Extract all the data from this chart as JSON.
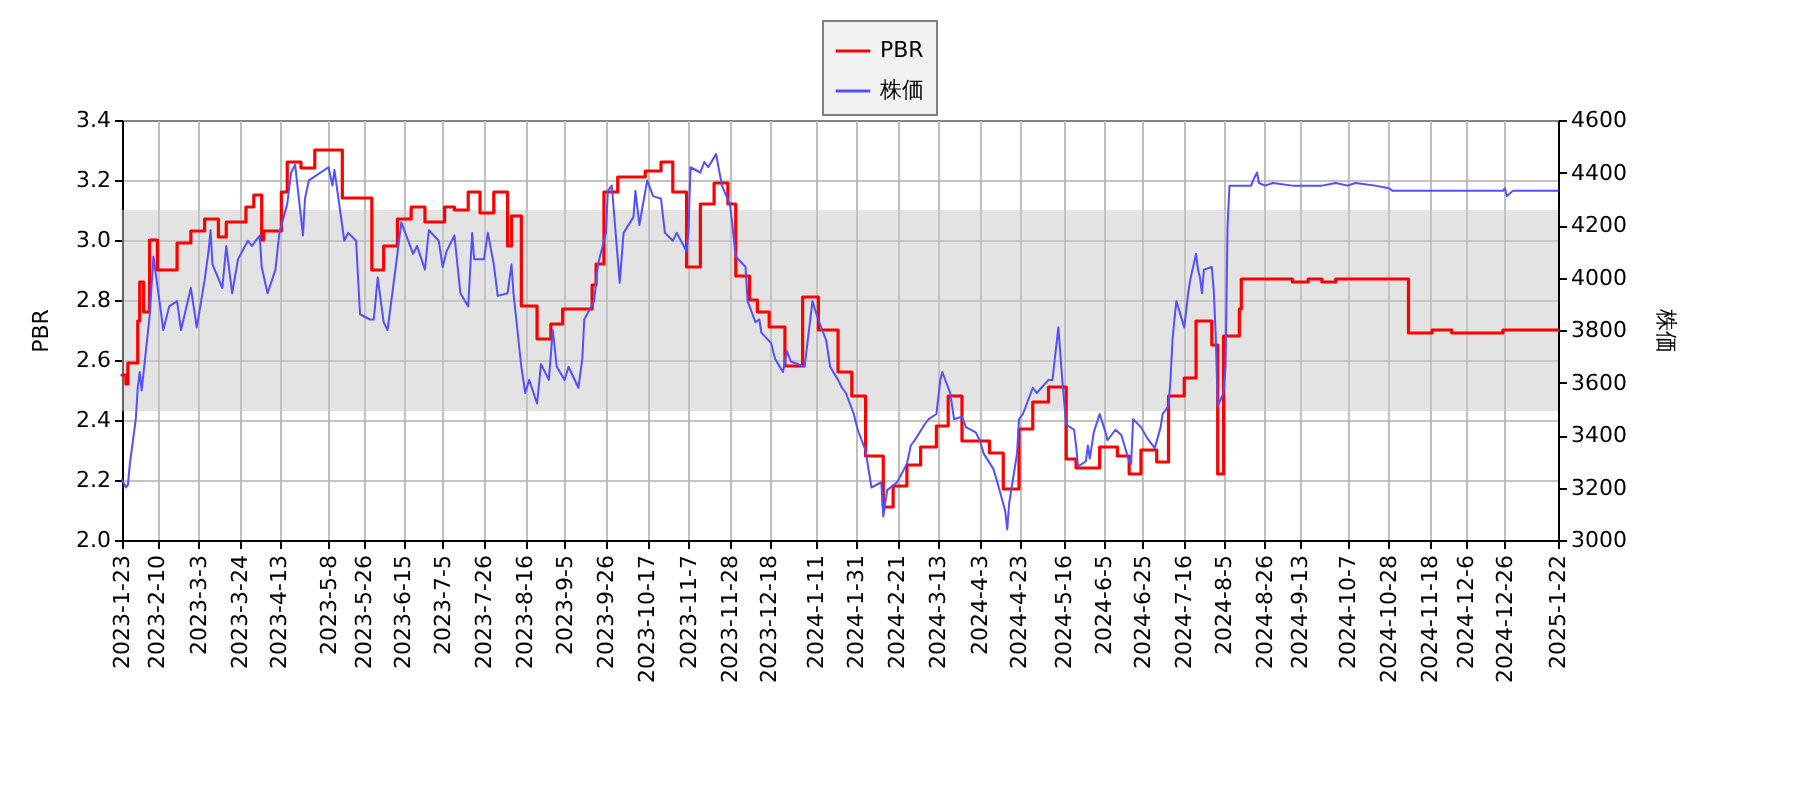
{
  "chart_data": {
    "type": "line",
    "ylabel": "PBR",
    "y2label": "株価",
    "xlim": [
      "2023-01-23",
      "2025-01-22"
    ],
    "xticks": [
      {
        "value": "2023-01-23",
        "label": "2023-1-23"
      },
      {
        "value": "2023-02-10",
        "label": "2023-2-10"
      },
      {
        "value": "2023-03-03",
        "label": "2023-3-3"
      },
      {
        "value": "2023-03-24",
        "label": "2023-3-24"
      },
      {
        "value": "2023-04-13",
        "label": "2023-4-13"
      },
      {
        "value": "2023-05-08",
        "label": "2023-5-8"
      },
      {
        "value": "2023-05-26",
        "label": "2023-5-26"
      },
      {
        "value": "2023-06-15",
        "label": "2023-6-15"
      },
      {
        "value": "2023-07-05",
        "label": "2023-7-5"
      },
      {
        "value": "2023-07-26",
        "label": "2023-7-26"
      },
      {
        "value": "2023-08-16",
        "label": "2023-8-16"
      },
      {
        "value": "2023-09-05",
        "label": "2023-9-5"
      },
      {
        "value": "2023-09-26",
        "label": "2023-9-26"
      },
      {
        "value": "2023-10-17",
        "label": "2023-10-17"
      },
      {
        "value": "2023-11-07",
        "label": "2023-11-7"
      },
      {
        "value": "2023-11-28",
        "label": "2023-11-28"
      },
      {
        "value": "2023-12-18",
        "label": "2023-12-18"
      },
      {
        "value": "2024-01-11",
        "label": "2024-1-11"
      },
      {
        "value": "2024-01-31",
        "label": "2024-1-31"
      },
      {
        "value": "2024-02-21",
        "label": "2024-2-21"
      },
      {
        "value": "2024-03-13",
        "label": "2024-3-13"
      },
      {
        "value": "2024-04-03",
        "label": "2024-4-3"
      },
      {
        "value": "2024-04-23",
        "label": "2024-4-23"
      },
      {
        "value": "2024-05-16",
        "label": "2024-5-16"
      },
      {
        "value": "2024-06-05",
        "label": "2024-6-5"
      },
      {
        "value": "2024-06-25",
        "label": "2024-6-25"
      },
      {
        "value": "2024-07-16",
        "label": "2024-7-16"
      },
      {
        "value": "2024-08-05",
        "label": "2024-8-5"
      },
      {
        "value": "2024-08-26",
        "label": "2024-8-26"
      },
      {
        "value": "2024-09-13",
        "label": "2024-9-13"
      },
      {
        "value": "2024-10-07",
        "label": "2024-10-7"
      },
      {
        "value": "2024-10-28",
        "label": "2024-10-28"
      },
      {
        "value": "2024-11-18",
        "label": "2024-11-18"
      },
      {
        "value": "2024-12-06",
        "label": "2024-12-6"
      },
      {
        "value": "2024-12-26",
        "label": "2024-12-26"
      },
      {
        "value": "2025-01-22",
        "label": "2025-1-22"
      }
    ],
    "ylim": [
      2.0,
      3.4
    ],
    "yticks": [
      {
        "value": 2,
        "label": "2.0"
      },
      2.2,
      2.4,
      2.6,
      2.8,
      {
        "value": 3,
        "label": "3.0"
      },
      3.2,
      3.4
    ],
    "y2lim": [
      3000,
      4600
    ],
    "y2ticks": [
      3000,
      3200,
      3400,
      3600,
      3800,
      4000,
      4200,
      4400,
      4600
    ],
    "grid": true,
    "legend": "top",
    "bands": [
      {
        "axis": "y",
        "from": 2.43,
        "to": 3.1,
        "color": "#c8c8c8"
      }
    ],
    "series": [
      {
        "name": "PBR",
        "type": "step",
        "color": "#ff0000",
        "x": [
          "2023-01-23",
          "2023-01-25",
          "2023-01-26",
          "2023-01-31",
          "2023-02-01",
          "2023-02-03",
          "2023-02-06",
          "2023-02-10",
          "2023-02-20",
          "2023-02-27",
          "2023-03-06",
          "2023-03-13",
          "2023-03-17",
          "2023-03-27",
          "2023-03-31",
          "2023-04-04",
          "2023-04-05",
          "2023-04-14",
          "2023-04-17",
          "2023-04-24",
          "2023-05-01",
          "2023-05-15",
          "2023-05-30",
          "2023-06-05",
          "2023-06-12",
          "2023-06-19",
          "2023-06-26",
          "2023-07-06",
          "2023-07-11",
          "2023-07-18",
          "2023-07-24",
          "2023-07-31",
          "2023-08-07",
          "2023-08-09",
          "2023-08-14",
          "2023-08-22",
          "2023-08-29",
          "2023-09-04",
          "2023-09-19",
          "2023-09-21",
          "2023-09-25",
          "2023-10-02",
          "2023-10-16",
          "2023-10-24",
          "2023-10-30",
          "2023-11-06",
          "2023-11-13",
          "2023-11-20",
          "2023-11-27",
          "2023-12-01",
          "2023-12-08",
          "2023-12-12",
          "2023-12-18",
          "2023-12-26",
          "2024-01-04",
          "2024-01-12",
          "2024-01-22",
          "2024-01-29",
          "2024-02-05",
          "2024-02-14",
          "2024-02-19",
          "2024-02-26",
          "2024-03-04",
          "2024-03-12",
          "2024-03-18",
          "2024-03-25",
          "2024-04-08",
          "2024-04-15",
          "2024-04-23",
          "2024-04-30",
          "2024-05-08",
          "2024-05-17",
          "2024-05-22",
          "2024-06-03",
          "2024-06-12",
          "2024-06-18",
          "2024-06-24",
          "2024-07-02",
          "2024-07-08",
          "2024-07-16",
          "2024-07-22",
          "2024-07-30",
          "2024-08-02",
          "2024-08-05",
          "2024-08-13",
          "2024-08-14",
          "2024-09-09",
          "2024-09-17",
          "2024-09-24",
          "2024-10-01",
          "2024-11-07",
          "2024-11-19",
          "2024-11-29",
          "2024-12-25",
          "2025-01-22"
        ],
        "values": [
          2.55,
          2.52,
          2.59,
          2.73,
          2.86,
          2.76,
          3.0,
          2.9,
          2.99,
          3.03,
          3.07,
          3.01,
          3.06,
          3.11,
          3.15,
          3.0,
          3.03,
          3.16,
          3.26,
          3.24,
          3.3,
          3.14,
          2.9,
          2.98,
          3.07,
          3.11,
          3.06,
          3.11,
          3.1,
          3.16,
          3.09,
          3.16,
          2.98,
          3.08,
          2.78,
          2.67,
          2.72,
          2.77,
          2.85,
          2.92,
          3.16,
          3.21,
          3.23,
          3.26,
          3.16,
          2.91,
          3.12,
          3.19,
          3.12,
          2.88,
          2.8,
          2.76,
          2.71,
          2.58,
          2.81,
          2.7,
          2.56,
          2.48,
          2.28,
          2.11,
          2.18,
          2.25,
          2.31,
          2.38,
          2.48,
          2.33,
          2.29,
          2.17,
          2.37,
          2.46,
          2.51,
          2.27,
          2.24,
          2.31,
          2.28,
          2.22,
          2.3,
          2.26,
          2.48,
          2.54,
          2.73,
          2.65,
          2.22,
          2.68,
          2.77,
          2.87,
          2.86,
          2.87,
          2.86,
          2.87,
          2.69,
          2.7,
          2.69,
          2.7,
          2.7
        ]
      },
      {
        "name": "株価",
        "color": "#5050ff",
        "axis": "y2",
        "x": [
          "2023-01-23",
          "2023-01-25",
          "2023-01-26",
          "2023-01-27",
          "2023-01-30",
          "2023-01-31",
          "2023-02-01",
          "2023-02-02",
          "2023-02-06",
          "2023-02-08",
          "2023-02-13",
          "2023-02-16",
          "2023-02-20",
          "2023-02-22",
          "2023-02-27",
          "2023-03-02",
          "2023-03-06",
          "2023-03-08",
          "2023-03-09",
          "2023-03-10",
          "2023-03-15",
          "2023-03-17",
          "2023-03-20",
          "2023-03-23",
          "2023-03-28",
          "2023-03-30",
          "2023-04-03",
          "2023-04-04",
          "2023-04-07",
          "2023-04-11",
          "2023-04-13",
          "2023-04-17",
          "2023-04-19",
          "2023-04-21",
          "2023-04-25",
          "2023-04-26",
          "2023-04-28",
          "2023-05-08",
          "2023-05-10",
          "2023-05-11",
          "2023-05-16",
          "2023-05-18",
          "2023-05-22",
          "2023-05-24",
          "2023-05-29",
          "2023-05-31",
          "2023-06-02",
          "2023-06-05",
          "2023-06-07",
          "2023-06-12",
          "2023-06-14",
          "2023-06-20",
          "2023-06-22",
          "2023-06-26",
          "2023-06-28",
          "2023-07-03",
          "2023-07-05",
          "2023-07-07",
          "2023-07-11",
          "2023-07-14",
          "2023-07-18",
          "2023-07-20",
          "2023-07-21",
          "2023-07-26",
          "2023-07-28",
          "2023-07-31",
          "2023-08-02",
          "2023-08-07",
          "2023-08-09",
          "2023-08-10",
          "2023-08-14",
          "2023-08-16",
          "2023-08-18",
          "2023-08-22",
          "2023-08-24",
          "2023-08-28",
          "2023-08-30",
          "2023-09-01",
          "2023-09-05",
          "2023-09-07",
          "2023-09-12",
          "2023-09-14",
          "2023-09-15",
          "2023-09-20",
          "2023-09-22",
          "2023-09-26",
          "2023-09-27",
          "2023-09-29",
          "2023-10-03",
          "2023-10-05",
          "2023-10-10",
          "2023-10-11",
          "2023-10-13",
          "2023-10-17",
          "2023-10-20",
          "2023-10-24",
          "2023-10-26",
          "2023-10-30",
          "2023-11-01",
          "2023-11-06",
          "2023-11-07",
          "2023-11-08",
          "2023-11-13",
          "2023-11-15",
          "2023-11-17",
          "2023-11-21",
          "2023-11-24",
          "2023-11-28",
          "2023-11-29",
          "2023-12-01",
          "2023-12-06",
          "2023-12-07",
          "2023-12-11",
          "2023-12-13",
          "2023-12-14",
          "2023-12-19",
          "2023-12-21",
          "2023-12-25",
          "2023-12-27",
          "2023-12-29",
          "2024-01-05",
          "2024-01-09",
          "2024-01-11",
          "2024-01-16",
          "2024-01-18",
          "2024-01-22",
          "2024-01-24",
          "2024-01-26",
          "2024-01-30",
          "2024-02-01",
          "2024-02-05",
          "2024-02-08",
          "2024-02-13",
          "2024-02-14",
          "2024-02-16",
          "2024-02-21",
          "2024-02-26",
          "2024-02-28",
          "2024-03-01",
          "2024-03-06",
          "2024-03-08",
          "2024-03-12",
          "2024-03-14",
          "2024-03-15",
          "2024-03-19",
          "2024-03-21",
          "2024-03-25",
          "2024-03-27",
          "2024-04-01",
          "2024-04-03",
          "2024-04-05",
          "2024-04-10",
          "2024-04-12",
          "2024-04-16",
          "2024-04-17",
          "2024-04-18",
          "2024-04-22",
          "2024-04-23",
          "2024-04-25",
          "2024-04-30",
          "2024-05-02",
          "2024-05-08",
          "2024-05-10",
          "2024-05-13",
          "2024-05-14",
          "2024-05-15",
          "2024-05-17",
          "2024-05-21",
          "2024-05-22",
          "2024-05-23",
          "2024-05-27",
          "2024-05-28",
          "2024-05-29",
          "2024-05-31",
          "2024-06-03",
          "2024-06-06",
          "2024-06-07",
          "2024-06-11",
          "2024-06-14",
          "2024-06-18",
          "2024-06-19",
          "2024-06-20",
          "2024-06-24",
          "2024-06-27",
          "2024-07-01",
          "2024-07-04",
          "2024-07-05",
          "2024-07-08",
          "2024-07-09",
          "2024-07-10",
          "2024-07-11",
          "2024-07-12",
          "2024-07-16",
          "2024-07-18",
          "2024-07-19",
          "2024-07-22",
          "2024-07-23",
          "2024-07-24",
          "2024-07-25",
          "2024-07-26",
          "2024-07-30",
          "2024-07-31",
          "2024-08-01",
          "2024-08-02",
          "2024-08-05",
          "2024-08-06",
          "2024-08-07",
          "2024-08-08",
          "2024-08-13",
          "2024-08-19",
          "2024-08-20",
          "2024-08-22",
          "2024-08-23",
          "2024-08-26",
          "2024-08-30",
          "2024-09-09",
          "2024-09-17",
          "2024-09-24",
          "2024-10-01",
          "2024-10-07",
          "2024-10-11",
          "2024-10-21",
          "2024-10-28",
          "2024-10-30",
          "2024-11-18",
          "2024-11-29",
          "2024-12-25",
          "2024-12-26",
          "2024-12-27",
          "2024-12-30",
          "2025-01-22"
        ],
        "values": [
          3230,
          3200,
          3210,
          3290,
          3460,
          3580,
          3640,
          3570,
          3850,
          4080,
          3800,
          3890,
          3910,
          3800,
          3960,
          3810,
          3990,
          4100,
          4180,
          4050,
          3960,
          4120,
          3940,
          4070,
          4140,
          4120,
          4160,
          4040,
          3940,
          4030,
          4170,
          4280,
          4400,
          4430,
          4160,
          4300,
          4370,
          4420,
          4350,
          4410,
          4140,
          4170,
          4140,
          3860,
          3840,
          3840,
          4000,
          3830,
          3800,
          4090,
          4210,
          4090,
          4120,
          4030,
          4180,
          4140,
          4040,
          4100,
          4160,
          3940,
          3890,
          4170,
          4070,
          4070,
          4170,
          4050,
          3930,
          3940,
          4050,
          3940,
          3660,
          3560,
          3610,
          3520,
          3670,
          3610,
          3800,
          3660,
          3610,
          3660,
          3580,
          3690,
          3840,
          3910,
          4050,
          4170,
          4330,
          4350,
          3980,
          4170,
          4230,
          4330,
          4200,
          4370,
          4310,
          4300,
          4170,
          4140,
          4170,
          4100,
          4180,
          4420,
          4400,
          4440,
          4420,
          4470,
          4350,
          4280,
          4220,
          4080,
          4040,
          3910,
          3830,
          3840,
          3790,
          3750,
          3690,
          3640,
          3720,
          3680,
          3660,
          3910,
          3860,
          3760,
          3660,
          3610,
          3580,
          3560,
          3480,
          3420,
          3340,
          3200,
          3220,
          3090,
          3190,
          3220,
          3290,
          3360,
          3380,
          3440,
          3460,
          3480,
          3610,
          3640,
          3560,
          3460,
          3470,
          3430,
          3410,
          3380,
          3330,
          3270,
          3220,
          3110,
          3040,
          3140,
          3330,
          3460,
          3480,
          3580,
          3560,
          3610,
          3610,
          3810,
          3710,
          3610,
          3440,
          3420,
          3360,
          3280,
          3300,
          3360,
          3310,
          3410,
          3480,
          3410,
          3380,
          3420,
          3400,
          3300,
          3290,
          3460,
          3430,
          3390,
          3350,
          3430,
          3480,
          3510,
          3610,
          3760,
          3840,
          3910,
          3810,
          3940,
          3990,
          4090,
          4030,
          4000,
          3940,
          4030,
          4040,
          3950,
          3780,
          3510,
          3560,
          3660,
          4190,
          4350,
          4350,
          4350,
          4370,
          4400,
          4360,
          4350,
          4360,
          4350,
          4350,
          4350,
          4360,
          4350,
          4360,
          4350,
          4340,
          4330,
          4330,
          4330,
          4330,
          4340,
          4310,
          4330,
          4330
        ]
      }
    ]
  }
}
